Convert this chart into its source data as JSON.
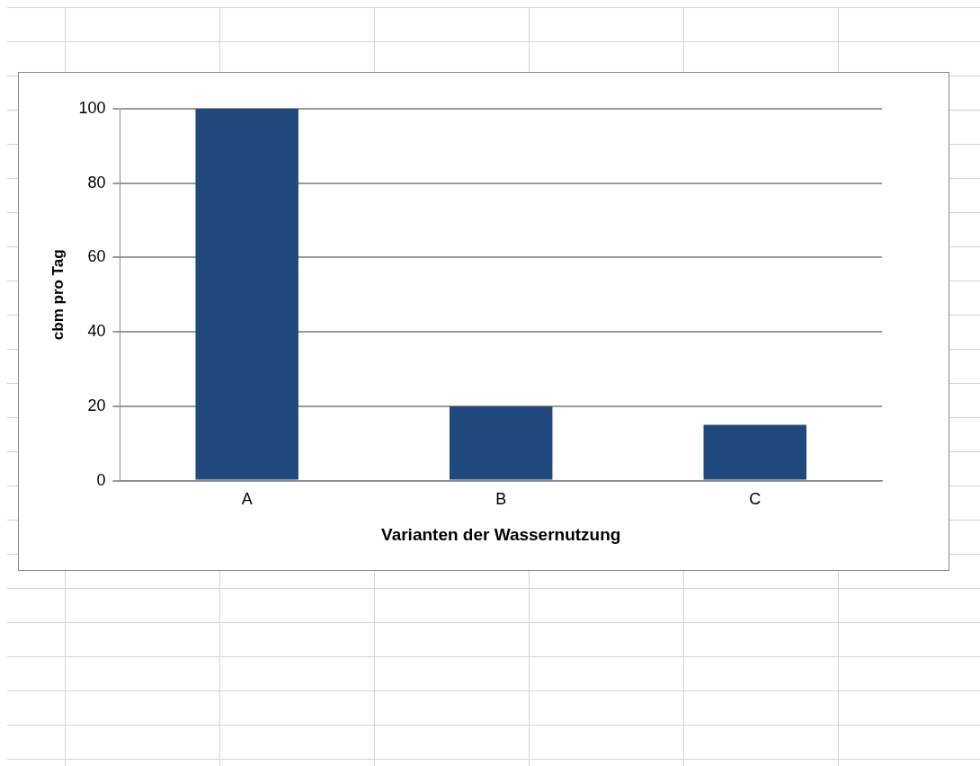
{
  "chart_data": {
    "type": "bar",
    "xlabel": "Varianten der Wassernutzung",
    "ylabel": "cbm pro Tag",
    "categories": [
      "A",
      "B",
      "C"
    ],
    "values": [
      100,
      20,
      15
    ],
    "color": "#1f497d",
    "ylim": [
      0,
      100
    ],
    "yticks": [
      0,
      20,
      40,
      60,
      80,
      100
    ],
    "grid": "y",
    "legend": false
  }
}
